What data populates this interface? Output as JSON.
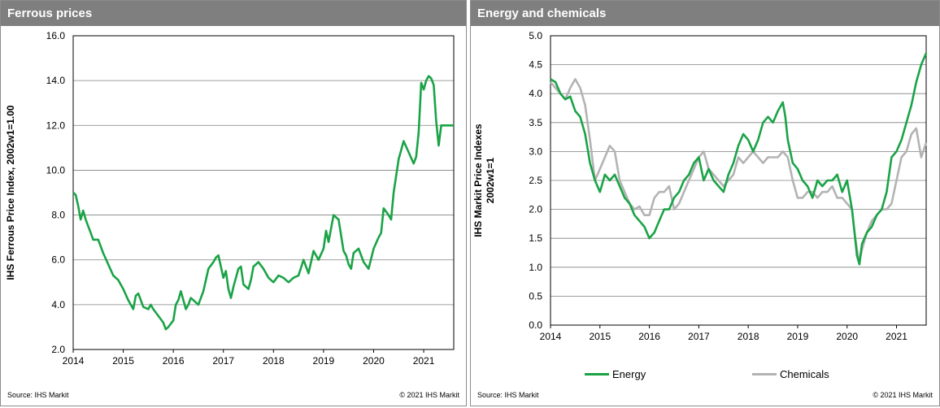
{
  "left": {
    "title": "Ferrous prices",
    "source": "Source:  IHS Markit",
    "copyright": "© 2021  IHS Markit"
  },
  "right": {
    "title": "Energy and chemicals",
    "source": "Source:  IHS Markit",
    "copyright": "© 2021  IHS Markit"
  },
  "colors": {
    "green": "#1aa346",
    "gray": "#b3b3b3",
    "grid": "#808080"
  },
  "chart_data": [
    {
      "type": "line",
      "title": "Ferrous prices",
      "ylabel": "IHS Ferrous Price Index, 2002w1=1.00",
      "xlabel": "",
      "x_ticks": [
        "2014",
        "2015",
        "2016",
        "2017",
        "2018",
        "2019",
        "2020",
        "2021"
      ],
      "xlim": [
        2014,
        2021.6
      ],
      "y_ticks": [
        "2.0",
        "4.0",
        "6.0",
        "8.0",
        "10.0",
        "12.0",
        "14.0",
        "16.0"
      ],
      "ylim": [
        2,
        16
      ],
      "grid": true,
      "series": [
        {
          "name": "",
          "color": "#1aa346",
          "x": [
            2014.0,
            2014.05,
            2014.1,
            2014.15,
            2014.2,
            2014.25,
            2014.3,
            2014.35,
            2014.4,
            2014.5,
            2014.6,
            2014.7,
            2014.8,
            2014.9,
            2015.0,
            2015.1,
            2015.2,
            2015.25,
            2015.3,
            2015.4,
            2015.5,
            2015.55,
            2015.6,
            2015.7,
            2015.8,
            2015.85,
            2015.9,
            2016.0,
            2016.05,
            2016.1,
            2016.15,
            2016.2,
            2016.25,
            2016.3,
            2016.35,
            2016.4,
            2016.5,
            2016.6,
            2016.7,
            2016.8,
            2016.85,
            2016.9,
            2017.0,
            2017.05,
            2017.1,
            2017.15,
            2017.2,
            2017.3,
            2017.35,
            2017.4,
            2017.5,
            2017.55,
            2017.6,
            2017.7,
            2017.8,
            2017.9,
            2018.0,
            2018.1,
            2018.2,
            2018.3,
            2018.4,
            2018.5,
            2018.6,
            2018.7,
            2018.8,
            2018.9,
            2019.0,
            2019.05,
            2019.1,
            2019.2,
            2019.3,
            2019.4,
            2019.45,
            2019.5,
            2019.55,
            2019.6,
            2019.7,
            2019.8,
            2019.9,
            2020.0,
            2020.1,
            2020.15,
            2020.2,
            2020.3,
            2020.35,
            2020.4,
            2020.5,
            2020.6,
            2020.7,
            2020.8,
            2020.85,
            2020.9,
            2020.95,
            2021.0,
            2021.05,
            2021.1,
            2021.15,
            2021.2,
            2021.25,
            2021.3,
            2021.35,
            2021.4,
            2021.45,
            2021.5,
            2021.55,
            2021.6
          ],
          "y": [
            9.0,
            8.9,
            8.4,
            7.8,
            8.2,
            7.8,
            7.5,
            7.2,
            6.9,
            6.9,
            6.3,
            5.8,
            5.3,
            5.1,
            4.7,
            4.2,
            3.8,
            4.4,
            4.5,
            3.9,
            3.8,
            4.0,
            3.8,
            3.5,
            3.2,
            2.9,
            3.0,
            3.3,
            4.0,
            4.2,
            4.6,
            4.2,
            3.8,
            4.0,
            4.3,
            4.2,
            4.0,
            4.6,
            5.6,
            5.9,
            6.1,
            6.2,
            5.2,
            5.5,
            4.7,
            4.3,
            4.8,
            5.6,
            5.7,
            4.9,
            4.7,
            5.1,
            5.7,
            5.9,
            5.6,
            5.2,
            5.0,
            5.3,
            5.2,
            5.0,
            5.2,
            5.3,
            6.0,
            5.4,
            6.4,
            6.0,
            6.5,
            7.3,
            6.8,
            8.0,
            7.8,
            6.4,
            6.2,
            5.8,
            5.6,
            6.3,
            6.5,
            5.9,
            5.6,
            6.5,
            7.0,
            7.2,
            8.3,
            8.0,
            7.8,
            9.0,
            10.5,
            11.3,
            10.8,
            10.3,
            10.6,
            11.7,
            13.9,
            13.6,
            14.0,
            14.2,
            14.1,
            13.8,
            12.2,
            11.1,
            12.0,
            12.0,
            12.0,
            12.0,
            12.0,
            12.0
          ]
        }
      ]
    },
    {
      "type": "line",
      "title": "Energy and chemicals",
      "ylabel": "IHS Markit Price Indexes 2002w1=1",
      "xlabel": "",
      "x_ticks": [
        "2014",
        "2015",
        "2016",
        "2017",
        "2018",
        "2019",
        "2020",
        "2021"
      ],
      "xlim": [
        2014,
        2021.6
      ],
      "y_ticks": [
        "0.0",
        "0.5",
        "1.0",
        "1.5",
        "2.0",
        "2.5",
        "3.0",
        "3.5",
        "4.0",
        "4.5",
        "5.0"
      ],
      "ylim": [
        0,
        5
      ],
      "grid": true,
      "legend": "bottom",
      "series": [
        {
          "name": "Energy",
          "color": "#1aa346",
          "x": [
            2014.0,
            2014.1,
            2014.2,
            2014.3,
            2014.4,
            2014.5,
            2014.6,
            2014.7,
            2014.8,
            2014.9,
            2015.0,
            2015.1,
            2015.2,
            2015.3,
            2015.4,
            2015.5,
            2015.6,
            2015.7,
            2015.8,
            2015.9,
            2016.0,
            2016.05,
            2016.1,
            2016.2,
            2016.3,
            2016.4,
            2016.5,
            2016.6,
            2016.7,
            2016.8,
            2016.9,
            2017.0,
            2017.1,
            2017.2,
            2017.3,
            2017.4,
            2017.5,
            2017.6,
            2017.7,
            2017.8,
            2017.9,
            2018.0,
            2018.1,
            2018.2,
            2018.3,
            2018.4,
            2018.5,
            2018.6,
            2018.7,
            2018.75,
            2018.8,
            2018.9,
            2019.0,
            2019.1,
            2019.2,
            2019.3,
            2019.4,
            2019.5,
            2019.6,
            2019.7,
            2019.8,
            2019.9,
            2020.0,
            2020.1,
            2020.15,
            2020.2,
            2020.25,
            2020.3,
            2020.4,
            2020.5,
            2020.6,
            2020.7,
            2020.8,
            2020.9,
            2021.0,
            2021.1,
            2021.2,
            2021.3,
            2021.4,
            2021.5,
            2021.6
          ],
          "y": [
            4.25,
            4.2,
            4.0,
            3.9,
            3.95,
            3.7,
            3.6,
            3.3,
            2.8,
            2.5,
            2.3,
            2.6,
            2.5,
            2.6,
            2.4,
            2.2,
            2.1,
            1.9,
            1.8,
            1.7,
            1.5,
            1.55,
            1.6,
            1.8,
            2.0,
            2.0,
            2.2,
            2.3,
            2.5,
            2.6,
            2.8,
            2.9,
            2.5,
            2.7,
            2.5,
            2.4,
            2.3,
            2.6,
            2.8,
            3.1,
            3.3,
            3.2,
            3.0,
            3.2,
            3.5,
            3.6,
            3.5,
            3.7,
            3.85,
            3.6,
            3.2,
            2.8,
            2.7,
            2.5,
            2.4,
            2.2,
            2.5,
            2.4,
            2.5,
            2.5,
            2.6,
            2.3,
            2.5,
            2.0,
            1.6,
            1.2,
            1.05,
            1.4,
            1.6,
            1.7,
            1.9,
            2.0,
            2.3,
            2.9,
            3.0,
            3.2,
            3.5,
            3.8,
            4.2,
            4.5,
            4.7
          ]
        },
        {
          "name": "Chemicals",
          "color": "#b3b3b3",
          "x": [
            2014.0,
            2014.1,
            2014.2,
            2014.3,
            2014.4,
            2014.5,
            2014.6,
            2014.7,
            2014.8,
            2014.9,
            2015.0,
            2015.1,
            2015.2,
            2015.3,
            2015.4,
            2015.5,
            2015.6,
            2015.7,
            2015.8,
            2015.9,
            2016.0,
            2016.1,
            2016.2,
            2016.3,
            2016.4,
            2016.5,
            2016.6,
            2016.7,
            2016.8,
            2016.9,
            2017.0,
            2017.1,
            2017.2,
            2017.3,
            2017.4,
            2017.5,
            2017.6,
            2017.7,
            2017.8,
            2017.9,
            2018.0,
            2018.1,
            2018.2,
            2018.3,
            2018.4,
            2018.5,
            2018.6,
            2018.7,
            2018.8,
            2018.9,
            2019.0,
            2019.1,
            2019.2,
            2019.3,
            2019.4,
            2019.5,
            2019.6,
            2019.7,
            2019.8,
            2019.9,
            2020.0,
            2020.1,
            2020.15,
            2020.2,
            2020.25,
            2020.3,
            2020.4,
            2020.5,
            2020.6,
            2020.7,
            2020.8,
            2020.9,
            2021.0,
            2021.1,
            2021.2,
            2021.3,
            2021.4,
            2021.5,
            2021.6
          ],
          "y": [
            4.2,
            4.1,
            4.0,
            3.9,
            4.1,
            4.25,
            4.1,
            3.8,
            3.2,
            2.5,
            2.7,
            2.9,
            3.1,
            3.0,
            2.5,
            2.3,
            2.1,
            2.0,
            2.05,
            1.9,
            1.9,
            2.2,
            2.3,
            2.3,
            2.4,
            2.0,
            2.1,
            2.3,
            2.5,
            2.7,
            2.9,
            3.0,
            2.7,
            2.6,
            2.5,
            2.4,
            2.5,
            2.6,
            2.9,
            2.8,
            2.9,
            3.0,
            2.9,
            2.8,
            2.9,
            2.9,
            2.9,
            3.0,
            2.9,
            2.5,
            2.2,
            2.2,
            2.3,
            2.3,
            2.2,
            2.3,
            2.3,
            2.4,
            2.2,
            2.2,
            2.1,
            2.0,
            1.6,
            1.3,
            1.1,
            1.3,
            1.6,
            1.8,
            1.9,
            2.0,
            2.0,
            2.1,
            2.5,
            2.9,
            3.0,
            3.3,
            3.4,
            2.9,
            3.15
          ]
        }
      ]
    }
  ]
}
